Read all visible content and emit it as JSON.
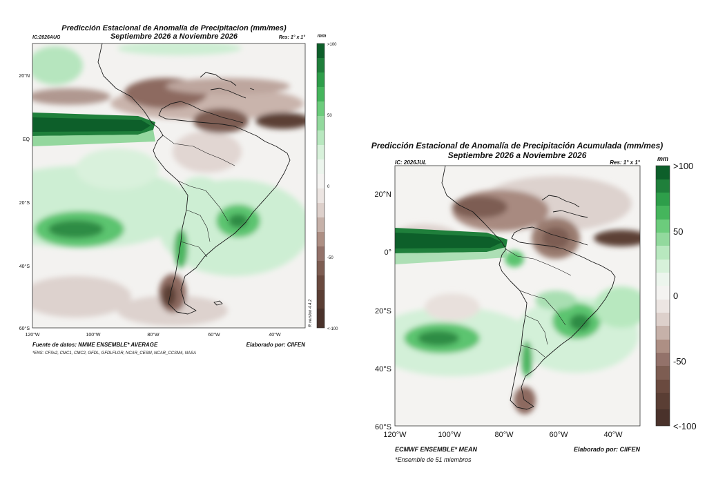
{
  "maps": [
    {
      "title_line1": "Predicción Estacional de Anomalía de Precipitacion (mm/mes)",
      "title_line2": "Septiembre 2026 a Noviembre 2026",
      "ic_label": "IC:2026AUG",
      "res_label": "Res: 1° x 1°",
      "unit_label": "mm",
      "lat_ticks": [
        "20°N",
        "EQ",
        "20°S",
        "40°S",
        "60°S"
      ],
      "lon_ticks": [
        "120°W",
        "100°W",
        "80°W",
        "60°W",
        "40°W"
      ],
      "colorbar_ticks": [
        ">100",
        "50",
        "0",
        "-50",
        "<-100"
      ],
      "version_label": "R version 4.4.2",
      "source_label": "Fuente de datos: NMME ENSEMBLE* AVERAGE",
      "credit_label": "Elaborado por: CIIFEN",
      "note_label": "*ENS: CFSv2, CMC1, CMC2, GFDL, GFDLFLOR, NCAR_CESM, NCAR_CCSM4, NASA"
    },
    {
      "title_line1": "Predicción Estacional de Anomalía de Precipitación Acumulada (mm/mes)",
      "title_line2": "Septiembre 2026 a Noviembre 2026",
      "ic_label": "IC: 2026JUL",
      "res_label": "Res: 1° x 1°",
      "unit_label": "mm",
      "lat_ticks": [
        "20°N",
        "0°",
        "20°S",
        "40°S",
        "60°S"
      ],
      "lon_ticks": [
        "120°W",
        "100°W",
        "80°W",
        "60°W",
        "40°W"
      ],
      "colorbar_ticks": [
        ">100",
        "50",
        "0",
        "-50",
        "<-100"
      ],
      "source_label": "ECMWF ENSEMBLE* MEAN",
      "credit_label": "Elaborado por: CIIFEN",
      "note_label": "*Ensemble de 51 miembros"
    }
  ],
  "map_extent": {
    "lon_min": -120,
    "lon_max": -30,
    "lat_min": -60,
    "lat_max": 30
  },
  "colorbar_levels_mm": [
    100,
    50,
    0,
    -50,
    -100
  ],
  "colors": {
    "wet_max": "#0d5f2a",
    "wet_high": "#2e9e4a",
    "wet_mid": "#5cc46f",
    "wet_low": "#b8e8bf",
    "neutral": "#f2f1ef",
    "dry_low": "#ddd0cb",
    "dry_mid": "#a27e72",
    "dry_high": "#6a4a3f",
    "dry_max": "#4a322b"
  }
}
